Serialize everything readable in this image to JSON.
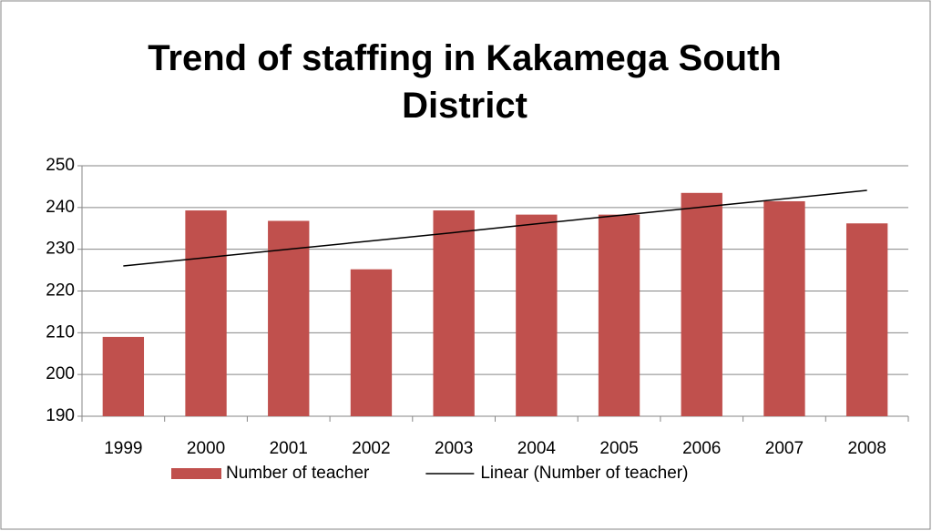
{
  "chart_data": {
    "type": "bar",
    "title": "Trend of staffing in Kakamega South District",
    "categories": [
      "1999",
      "2000",
      "2001",
      "2002",
      "2003",
      "2004",
      "2005",
      "2006",
      "2007",
      "2008"
    ],
    "series": [
      {
        "name": "Number of teacher",
        "type": "bar",
        "color": "#c0504d",
        "values": [
          209,
          239.3,
          236.8,
          225.2,
          239.3,
          238.3,
          238.3,
          243.5,
          241.5,
          236.2
        ]
      },
      {
        "name": "Linear (Number of teacher)",
        "type": "line",
        "color": "#000000",
        "values": [
          226.0,
          228.0,
          230.0,
          232.0,
          234.0,
          236.1,
          238.1,
          240.1,
          242.1,
          244.1
        ]
      }
    ],
    "ylim": [
      190,
      250
    ],
    "yticks": [
      190,
      200,
      210,
      220,
      230,
      240,
      250
    ],
    "grid": true,
    "legend": "bottom"
  }
}
